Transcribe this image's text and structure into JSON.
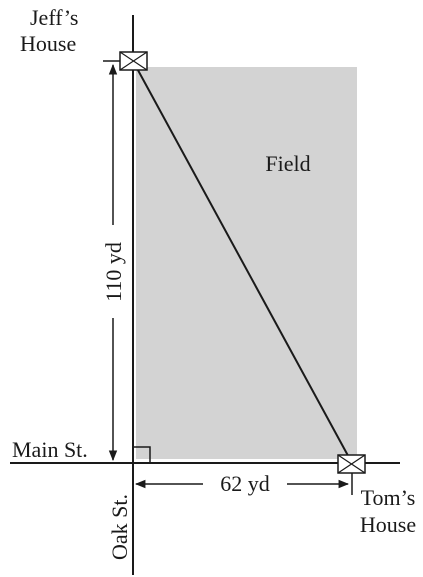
{
  "labels": {
    "jeff_house_line1": "Jeff’s",
    "jeff_house_line2": "House",
    "tom_house_line1": "Tom’s",
    "tom_house_line2": "House",
    "field": "Field",
    "main_street": "Main St.",
    "oak_street": "Oak St.",
    "vertical_distance": "110 yd",
    "horizontal_distance": "62 yd"
  },
  "colors": {
    "field_fill": "#d3d3d3",
    "line": "#1a1a1a",
    "house_fill": "#ffffff"
  },
  "icons": {
    "house_marker": "envelope-icon"
  }
}
